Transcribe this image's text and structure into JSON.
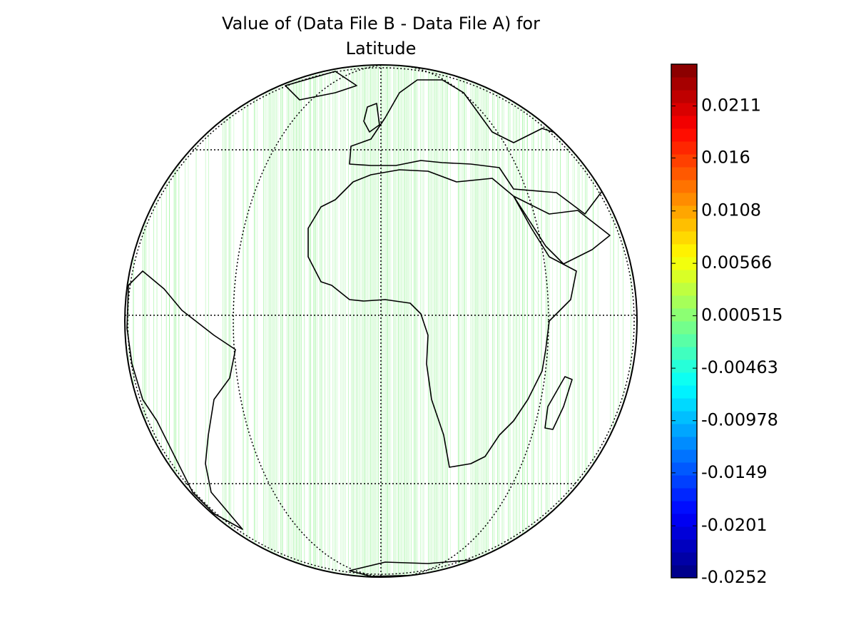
{
  "title_lines": [
    "Value of (Data File B - Data File A) for",
    "Latitude"
  ],
  "colorbar": {
    "colormap": "jet",
    "range": [
      -0.0252,
      0.0252
    ],
    "ticks": [
      -0.0252,
      -0.0201,
      -0.0149,
      -0.00978,
      -0.00463,
      0.000515,
      0.00566,
      0.0108,
      0.016,
      0.0211
    ]
  },
  "data_color": "#66ee66"
}
